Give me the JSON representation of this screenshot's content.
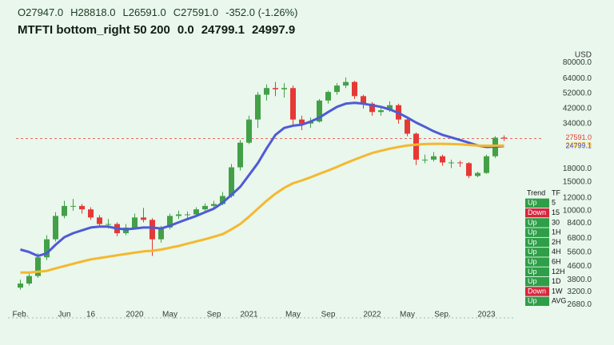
{
  "header": {
    "ohlc_line": [
      "O27947.0",
      "H28818.0",
      "L26591.0",
      "C27591.0",
      "-352.0 (-1.26%)"
    ],
    "indicator_line": [
      "MTFTI bottom_right 50 200",
      "0.0",
      "24799.1",
      "24997.9"
    ]
  },
  "chart_data": {
    "type": "candlestick",
    "y_axis_label": "USD",
    "log_scale": true,
    "ylim": [
      2300,
      93000
    ],
    "yticks": [
      {
        "value": 80000,
        "label": "80000.0"
      },
      {
        "value": 64000,
        "label": "64000.0"
      },
      {
        "value": 52000,
        "label": "52000.0"
      },
      {
        "value": 42000,
        "label": "42000.0"
      },
      {
        "value": 34000,
        "label": "34000.0"
      },
      {
        "value": 18000,
        "label": "18000.0"
      },
      {
        "value": 15000,
        "label": "15000.0"
      },
      {
        "value": 12000,
        "label": "12000.0"
      },
      {
        "value": 10000,
        "label": "10000.0"
      },
      {
        "value": 8400,
        "label": "8400.0"
      },
      {
        "value": 6800,
        "label": "6800.0"
      },
      {
        "value": 5600,
        "label": "5600.0"
      },
      {
        "value": 4600,
        "label": "4600.0"
      },
      {
        "value": 3800,
        "label": "3800.0"
      },
      {
        "value": 3200,
        "label": "3200.0"
      },
      {
        "value": 2680,
        "label": "2680.0"
      }
    ],
    "price_markers": [
      {
        "value": 27591,
        "label": "27591.0",
        "color": "#e53935"
      },
      {
        "value": 24997.9,
        "label": "24997.9",
        "color": "#f2b01e"
      },
      {
        "value": 24799.1,
        "label": "24799.1",
        "color": "#4f5bd5"
      }
    ],
    "up_color": "#43a047",
    "down_color": "#e53935",
    "categories": [
      "Feb.",
      null,
      null,
      null,
      null,
      "Jun",
      null,
      null,
      "16",
      null,
      null,
      null,
      null,
      "2020",
      null,
      null,
      null,
      "May",
      null,
      null,
      null,
      null,
      "Sep",
      null,
      null,
      null,
      "2021",
      null,
      null,
      null,
      null,
      "May",
      null,
      null,
      null,
      "Sep",
      null,
      null,
      null,
      null,
      "2022",
      null,
      null,
      null,
      "May",
      null,
      null,
      null,
      "Sep.",
      null,
      null,
      null,
      null,
      "2023",
      null,
      null
    ],
    "open": [
      3400,
      3600,
      4000,
      5200,
      6700,
      9300,
      10700,
      10700,
      10200,
      9100,
      8300,
      8300,
      7300,
      7900,
      9100,
      8800,
      6700,
      7900,
      9300,
      9500,
      9500,
      10200,
      10700,
      11000,
      12300,
      18400,
      26000,
      36000,
      51000,
      56000,
      55000,
      56000,
      36000,
      34000,
      35000,
      47000,
      53000,
      58000,
      61000,
      50000,
      45000,
      40000,
      41000,
      44000,
      36000,
      29500,
      20500,
      20500,
      21500,
      19700,
      19700,
      19500,
      16300,
      17000,
      21500,
      27947
    ],
    "high": [
      3800,
      4200,
      5500,
      7100,
      9800,
      11500,
      11800,
      11000,
      10500,
      9400,
      8900,
      8500,
      8300,
      9600,
      10400,
      9000,
      8100,
      9600,
      10000,
      9900,
      10500,
      11100,
      11500,
      13000,
      19300,
      27000,
      38000,
      53000,
      59000,
      61000,
      60000,
      58000,
      38000,
      37000,
      48000,
      54000,
      60000,
      65000,
      62000,
      51000,
      46000,
      43000,
      46500,
      45000,
      37000,
      30000,
      22000,
      22800,
      22000,
      20500,
      20200,
      19800,
      17300,
      22000,
      28500,
      28818
    ],
    "low": [
      3300,
      3500,
      3900,
      5000,
      6500,
      9000,
      10000,
      9600,
      8800,
      7900,
      7800,
      7000,
      7100,
      7700,
      8500,
      5300,
      6400,
      7700,
      8900,
      9000,
      9300,
      10000,
      10300,
      10800,
      12000,
      17600,
      25500,
      32000,
      47000,
      50000,
      49000,
      33000,
      31000,
      32000,
      34500,
      45000,
      51000,
      56000,
      48000,
      42000,
      38000,
      38000,
      40000,
      34000,
      28500,
      19000,
      19500,
      20000,
      18800,
      18200,
      18500,
      15800,
      16000,
      16800,
      21000,
      26591
    ],
    "close": [
      3600,
      4000,
      5200,
      6700,
      9300,
      10700,
      10700,
      10200,
      9100,
      8300,
      8300,
      7300,
      7900,
      9100,
      8800,
      6700,
      7900,
      9300,
      9500,
      9500,
      10200,
      10700,
      11000,
      12300,
      18400,
      26000,
      36000,
      51000,
      56000,
      55000,
      56000,
      36000,
      34000,
      35000,
      47000,
      53000,
      58000,
      61000,
      50000,
      45000,
      40000,
      41000,
      44000,
      36000,
      29500,
      20500,
      20500,
      21500,
      19700,
      19700,
      19500,
      16300,
      17000,
      21500,
      27900,
      27591
    ],
    "lines": [
      {
        "color": "#4f5bd5",
        "values": [
          5800,
          5600,
          5300,
          5500,
          6200,
          6900,
          7300,
          7600,
          7900,
          8000,
          8000,
          7800,
          7700,
          7800,
          7900,
          7900,
          7800,
          8100,
          8500,
          8900,
          9300,
          9800,
          10300,
          11200,
          12500,
          14000,
          16500,
          19500,
          24000,
          29000,
          32000,
          33000,
          33500,
          35000,
          37000,
          40000,
          43000,
          45000,
          45500,
          45000,
          44000,
          43000,
          41500,
          39500,
          37000,
          34500,
          32500,
          30500,
          29000,
          28000,
          27000,
          26000,
          25000,
          24500,
          24600,
          24799.1
        ]
      },
      {
        "color": "#f5b82e",
        "values": [
          4200,
          4200,
          4250,
          4300,
          4450,
          4600,
          4750,
          4900,
          5050,
          5150,
          5250,
          5350,
          5450,
          5550,
          5650,
          5700,
          5800,
          5950,
          6100,
          6300,
          6500,
          6700,
          6950,
          7200,
          7700,
          8300,
          9200,
          10300,
          11500,
          12700,
          13800,
          14700,
          15300,
          16000,
          16800,
          17600,
          18500,
          19500,
          20500,
          21500,
          22500,
          23200,
          23900,
          24500,
          25000,
          25300,
          25500,
          25600,
          25600,
          25500,
          25400,
          25200,
          25000,
          24900,
          24950,
          24997.9
        ]
      }
    ]
  },
  "trend_table": {
    "header": [
      "Trend",
      "TF"
    ],
    "colors": {
      "Up": "#2e9e48",
      "Down": "#d7263d"
    },
    "rows": [
      [
        "Up",
        "5"
      ],
      [
        "Down",
        "15"
      ],
      [
        "Up",
        "30"
      ],
      [
        "Up",
        "1H"
      ],
      [
        "Up",
        "2H"
      ],
      [
        "Up",
        "4H"
      ],
      [
        "Up",
        "6H"
      ],
      [
        "Up",
        "12H"
      ],
      [
        "Up",
        "1D"
      ],
      [
        "Down",
        "1W"
      ],
      [
        "Up",
        "AVG"
      ]
    ]
  }
}
